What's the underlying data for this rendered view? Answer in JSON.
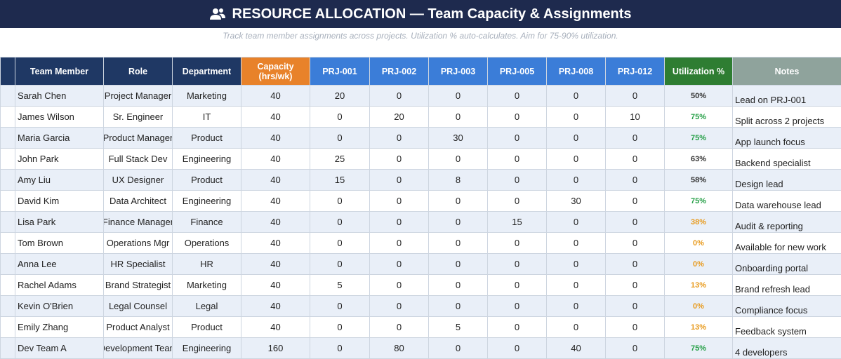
{
  "header": {
    "title": "RESOURCE ALLOCATION — Team Capacity & Assignments",
    "subtitle": "Track team member assignments across projects. Utilization % auto-calculates. Aim for 75-90% utilization."
  },
  "table": {
    "columns": [
      "Team Member",
      "Role",
      "Department",
      "Capacity (hrs/wk)",
      "PRJ-001",
      "PRJ-002",
      "PRJ-003",
      "PRJ-005",
      "PRJ-008",
      "PRJ-012",
      "Utilization %",
      "Notes"
    ],
    "rows": [
      [
        "Sarah Chen",
        "Project Manager",
        "Marketing",
        40,
        20,
        0,
        0,
        0,
        0,
        0,
        "50%",
        "Lead on PRJ-001"
      ],
      [
        "James Wilson",
        "Sr. Engineer",
        "IT",
        40,
        0,
        20,
        0,
        0,
        0,
        10,
        "75%",
        "Split across 2 projects"
      ],
      [
        "Maria Garcia",
        "Product Manager",
        "Product",
        40,
        0,
        0,
        30,
        0,
        0,
        0,
        "75%",
        "App launch focus"
      ],
      [
        "John Park",
        "Full Stack Dev",
        "Engineering",
        40,
        25,
        0,
        0,
        0,
        0,
        0,
        "63%",
        "Backend specialist"
      ],
      [
        "Amy Liu",
        "UX Designer",
        "Product",
        40,
        15,
        0,
        8,
        0,
        0,
        0,
        "58%",
        "Design lead"
      ],
      [
        "David Kim",
        "Data Architect",
        "Engineering",
        40,
        0,
        0,
        0,
        0,
        30,
        0,
        "75%",
        "Data warehouse lead"
      ],
      [
        "Lisa Park",
        "Finance Manager",
        "Finance",
        40,
        0,
        0,
        0,
        15,
        0,
        0,
        "38%",
        "Audit & reporting"
      ],
      [
        "Tom Brown",
        "Operations Mgr",
        "Operations",
        40,
        0,
        0,
        0,
        0,
        0,
        0,
        "0%",
        "Available for new work"
      ],
      [
        "Anna Lee",
        "HR Specialist",
        "HR",
        40,
        0,
        0,
        0,
        0,
        0,
        0,
        "0%",
        "Onboarding portal"
      ],
      [
        "Rachel Adams",
        "Brand Strategist",
        "Marketing",
        40,
        5,
        0,
        0,
        0,
        0,
        0,
        "13%",
        "Brand refresh lead"
      ],
      [
        "Kevin O'Brien",
        "Legal Counsel",
        "Legal",
        40,
        0,
        0,
        0,
        0,
        0,
        0,
        "0%",
        "Compliance focus"
      ],
      [
        "Emily Zhang",
        "Product Analyst",
        "Product",
        40,
        0,
        0,
        5,
        0,
        0,
        0,
        "13%",
        "Feedback system"
      ],
      [
        "Dev Team A",
        "Development Team",
        "Engineering",
        160,
        0,
        80,
        0,
        0,
        40,
        0,
        "75%",
        "4 developers"
      ]
    ]
  }
}
